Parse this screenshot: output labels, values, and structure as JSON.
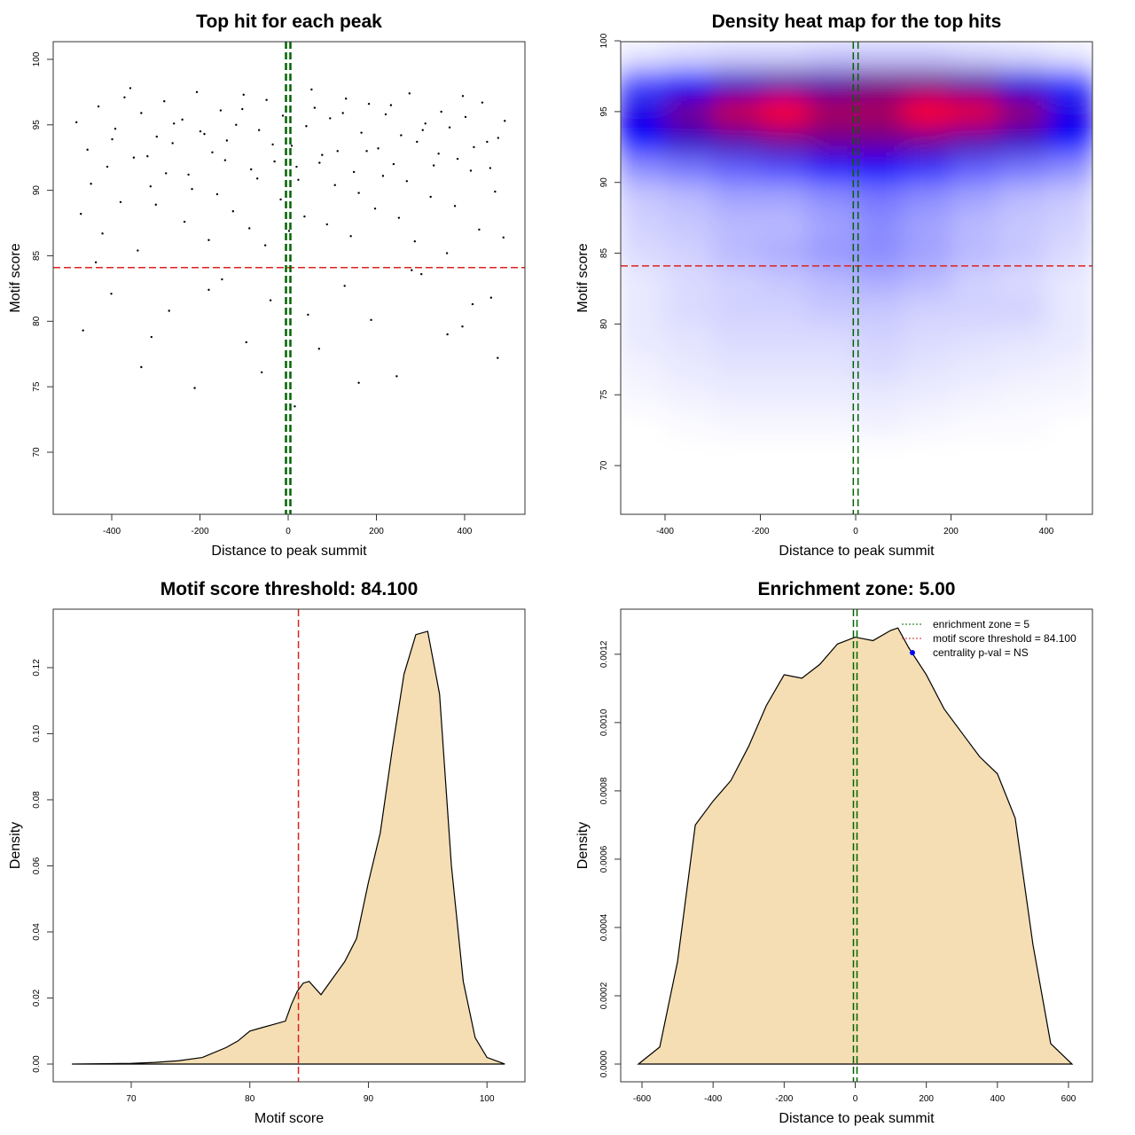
{
  "chart_data": [
    {
      "type": "scatter",
      "title": "Top hit for each peak",
      "x_label": "Distance to peak summit",
      "y_label": "Motif score",
      "xlim": [
        -532.7,
        536.7
      ],
      "ylim": [
        65.26,
        101.35
      ],
      "xticks": [
        -400,
        -200,
        0,
        200,
        400
      ],
      "yticks": [
        70,
        75,
        80,
        85,
        90,
        95,
        100
      ],
      "color": "#000000",
      "hlines": [
        84.1
      ],
      "hline_color": "#dd2222",
      "vlines": [
        -5,
        5
      ],
      "vline_color": "#006400",
      "x": [
        -480,
        -455,
        -430,
        -410,
        -392,
        -371,
        -350,
        -333,
        -312,
        -298,
        -281,
        -262,
        -240,
        -226,
        -207,
        -190,
        -172,
        -153,
        -139,
        -118,
        -101,
        -84,
        -66,
        -49,
        -31,
        -12,
        8,
        23,
        41,
        60,
        77,
        95,
        112,
        131,
        149,
        166,
        183,
        204,
        221,
        239,
        256,
        275,
        292,
        311,
        330,
        347,
        366,
        384,
        402,
        421,
        440,
        458,
        476,
        491,
        -470,
        -447,
        -421,
        -399,
        -380,
        -358,
        -341,
        -319,
        -300,
        -277,
        -259,
        -235,
        -218,
        -199,
        -180,
        -161,
        -143,
        -125,
        -104,
        -88,
        -70,
        -52,
        -35,
        -17,
        2,
        19,
        37,
        53,
        71,
        88,
        106,
        124,
        142,
        160,
        178,
        197,
        215,
        233,
        251,
        269,
        287,
        305,
        323,
        341,
        360,
        378,
        396,
        414,
        433,
        451,
        469,
        488,
        -465,
        -401,
        -333,
        -270,
        -212,
        -150,
        -95,
        -40,
        15,
        70,
        128,
        188,
        246,
        302,
        361,
        418,
        475,
        -436,
        -310,
        -180,
        -60,
        45,
        160,
        280,
        395,
        460
      ],
      "values": [
        95.2,
        93.1,
        96.4,
        91.8,
        94.7,
        97.1,
        92.5,
        95.9,
        90.3,
        94.1,
        96.8,
        93.6,
        95.4,
        91.2,
        97.5,
        94.3,
        92.9,
        96.1,
        93.8,
        95.0,
        97.3,
        91.6,
        94.6,
        96.9,
        92.2,
        95.7,
        93.4,
        90.8,
        94.9,
        96.3,
        92.7,
        95.5,
        93.0,
        97.0,
        91.4,
        94.4,
        96.6,
        93.2,
        95.8,
        92.0,
        94.2,
        97.4,
        93.7,
        95.1,
        91.9,
        96.0,
        94.8,
        92.4,
        95.6,
        93.3,
        96.7,
        91.7,
        94.0,
        95.3,
        88.2,
        90.5,
        86.7,
        93.9,
        89.1,
        97.8,
        85.4,
        92.6,
        88.9,
        91.3,
        95.1,
        87.6,
        90.1,
        94.5,
        86.2,
        89.7,
        92.3,
        88.4,
        96.2,
        87.1,
        90.9,
        85.8,
        93.5,
        89.3,
        86.9,
        91.8,
        88.0,
        97.7,
        92.1,
        87.4,
        90.4,
        95.9,
        86.5,
        89.8,
        93.0,
        88.6,
        91.1,
        96.5,
        87.9,
        90.7,
        86.1,
        94.6,
        89.5,
        92.8,
        85.2,
        88.8,
        97.2,
        91.5,
        87.0,
        93.7,
        89.9,
        86.4,
        79.3,
        82.1,
        76.5,
        80.8,
        74.9,
        83.2,
        78.4,
        81.6,
        73.5,
        77.9,
        82.7,
        80.1,
        75.8,
        83.6,
        79.0,
        81.3,
        77.2,
        84.5,
        78.8,
        82.4,
        76.1,
        80.5,
        75.3,
        83.9,
        79.6,
        81.8
      ]
    },
    {
      "type": "heatmap",
      "title": "Density heat map for the top hits",
      "x_label": "Distance to peak summit",
      "y_label": "Motif score",
      "xlim": [
        -493,
        496.7
      ],
      "ylim": [
        66.56,
        99.94
      ],
      "xticks": [
        -400,
        -200,
        0,
        200,
        400
      ],
      "yticks": [
        70,
        75,
        80,
        85,
        90,
        95,
        100
      ],
      "colors": [
        "#ffffff",
        "#0000ff",
        "#ff0000"
      ],
      "color_stops": [
        0,
        0.55,
        1
      ],
      "hlines": [
        84.1
      ],
      "hline_color": "#dd2222",
      "vlines": [
        -5,
        5
      ],
      "vline_color": "#006400",
      "x": [
        -450,
        -350,
        -250,
        -150,
        -50,
        50,
        150,
        250,
        350,
        450
      ],
      "y": [
        99,
        97,
        95,
        93,
        91,
        89,
        87,
        85,
        83,
        81,
        79,
        77,
        75,
        73
      ],
      "z": [
        [
          0.05,
          0.08,
          0.1,
          0.1,
          0.12,
          0.12,
          0.12,
          0.1,
          0.08,
          0.05
        ],
        [
          0.4,
          0.55,
          0.65,
          0.7,
          0.7,
          0.75,
          0.75,
          0.7,
          0.6,
          0.45
        ],
        [
          0.6,
          0.75,
          0.9,
          1.0,
          0.85,
          0.85,
          1.0,
          0.95,
          0.8,
          0.6
        ],
        [
          0.55,
          0.65,
          0.7,
          0.75,
          0.75,
          0.75,
          0.75,
          0.7,
          0.65,
          0.55
        ],
        [
          0.25,
          0.3,
          0.35,
          0.4,
          0.5,
          0.55,
          0.45,
          0.35,
          0.3,
          0.25
        ],
        [
          0.12,
          0.15,
          0.2,
          0.2,
          0.25,
          0.3,
          0.25,
          0.2,
          0.15,
          0.12
        ],
        [
          0.1,
          0.12,
          0.15,
          0.15,
          0.2,
          0.25,
          0.2,
          0.15,
          0.12,
          0.1
        ],
        [
          0.08,
          0.1,
          0.15,
          0.18,
          0.22,
          0.25,
          0.2,
          0.15,
          0.12,
          0.08
        ],
        [
          0.05,
          0.08,
          0.1,
          0.12,
          0.15,
          0.18,
          0.15,
          0.1,
          0.08,
          0.05
        ],
        [
          0.05,
          0.08,
          0.1,
          0.1,
          0.12,
          0.12,
          0.1,
          0.1,
          0.1,
          0.05
        ],
        [
          0.05,
          0.06,
          0.08,
          0.08,
          0.08,
          0.1,
          0.08,
          0.07,
          0.06,
          0.05
        ],
        [
          0.03,
          0.05,
          0.06,
          0.06,
          0.06,
          0.08,
          0.06,
          0.05,
          0.04,
          0.03
        ],
        [
          0.02,
          0.03,
          0.04,
          0.04,
          0.04,
          0.05,
          0.04,
          0.03,
          0.02,
          0.02
        ],
        [
          0,
          0.01,
          0.02,
          0.02,
          0.02,
          0.03,
          0.02,
          0.01,
          0.01,
          0
        ]
      ]
    },
    {
      "type": "density",
      "title": "Motif score threshold: 84.100",
      "x_label": "Motif score",
      "y_label": "Density",
      "xlim": [
        63.42,
        103.2
      ],
      "ylim": [
        -0.00537,
        0.1377
      ],
      "xticks": [
        70,
        80,
        90,
        100
      ],
      "yticks": [
        {
          "value": 0,
          "label": "0.00"
        },
        {
          "value": 0.02,
          "label": "0.02"
        },
        {
          "value": 0.04,
          "label": "0.04"
        },
        {
          "value": 0.06,
          "label": "0.06"
        },
        {
          "value": 0.08,
          "label": "0.08"
        },
        {
          "value": 0.1,
          "label": "0.10"
        },
        {
          "value": 0.12,
          "label": "0.12"
        }
      ],
      "fill": "#f5deb3",
      "vlines": [
        84.1
      ],
      "vline_color": "#dd2222",
      "x": [
        65,
        70,
        72,
        74,
        76,
        78,
        79,
        80,
        81,
        82,
        83,
        83.5,
        84,
        84.5,
        85,
        86,
        87,
        88,
        89,
        90,
        91,
        92,
        93,
        94,
        95,
        96,
        97,
        98,
        99,
        100,
        101.5
      ],
      "values": [
        0,
        0.0002,
        0.0005,
        0.001,
        0.002,
        0.005,
        0.007,
        0.01,
        0.011,
        0.012,
        0.013,
        0.018,
        0.022,
        0.0245,
        0.025,
        0.021,
        0.026,
        0.031,
        0.038,
        0.055,
        0.07,
        0.095,
        0.118,
        0.13,
        0.131,
        0.112,
        0.06,
        0.025,
        0.008,
        0.002,
        0
      ]
    },
    {
      "type": "density",
      "title": "Enrichment zone: 5.00",
      "x_label": "Distance to peak summit",
      "y_label": "Density",
      "xlim": [
        -659.9,
        667.4
      ],
      "ylim": [
        -5.19e-05,
        0.001332
      ],
      "xticks": [
        -600,
        -400,
        -200,
        0,
        200,
        400,
        600
      ],
      "yticks": [
        {
          "value": 0,
          "label": "0.0000"
        },
        {
          "value": 0.0002,
          "label": "0.0002"
        },
        {
          "value": 0.0004,
          "label": "0.0004"
        },
        {
          "value": 0.0006,
          "label": "0.0006"
        },
        {
          "value": 0.0008,
          "label": "0.0008"
        },
        {
          "value": 0.001,
          "label": "0.0010"
        },
        {
          "value": 0.0012,
          "label": "0.0012"
        }
      ],
      "fill": "#f5deb3",
      "vlines": [
        -5,
        5
      ],
      "vline_color": "#006400",
      "x": [
        -610,
        -550,
        -500,
        -450,
        -400,
        -350,
        -300,
        -250,
        -200,
        -150,
        -100,
        -50,
        0,
        50,
        100,
        120,
        150,
        200,
        250,
        300,
        350,
        400,
        450,
        500,
        550,
        610
      ],
      "values": [
        0,
        5e-05,
        0.0003,
        0.0007,
        0.00077,
        0.00083,
        0.00093,
        0.00105,
        0.00114,
        0.00113,
        0.00117,
        0.00123,
        0.00125,
        0.00124,
        0.00127,
        0.001277,
        0.00122,
        0.00114,
        0.00104,
        0.00097,
        0.0009,
        0.00085,
        0.00072,
        0.00035,
        6e-05,
        0
      ],
      "legend": [
        {
          "label": "enrichment zone = 5",
          "color": "#006400",
          "style": "dotted"
        },
        {
          "label": "motif score threshold = 84.100",
          "color": "#dd2222",
          "style": "dotted"
        },
        {
          "label": "centrality p-val = NS",
          "color": "#0000ff",
          "style": "point"
        }
      ]
    }
  ]
}
